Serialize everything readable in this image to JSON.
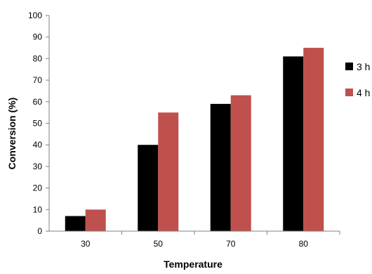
{
  "chart_data": {
    "type": "bar",
    "categories": [
      "30",
      "50",
      "70",
      "80"
    ],
    "series": [
      {
        "name": "3 h",
        "values": [
          7,
          40,
          59,
          81
        ],
        "color": "#000000"
      },
      {
        "name": "4 h",
        "values": [
          10,
          55,
          63,
          85
        ],
        "color": "#c0504d"
      }
    ],
    "xlabel": "Temperature",
    "ylabel": "Conversion (%)",
    "ylim": [
      0,
      100
    ],
    "yticks": [
      0,
      10,
      20,
      30,
      40,
      50,
      60,
      70,
      80,
      90,
      100
    ],
    "grid": false,
    "legend_position": "right"
  }
}
